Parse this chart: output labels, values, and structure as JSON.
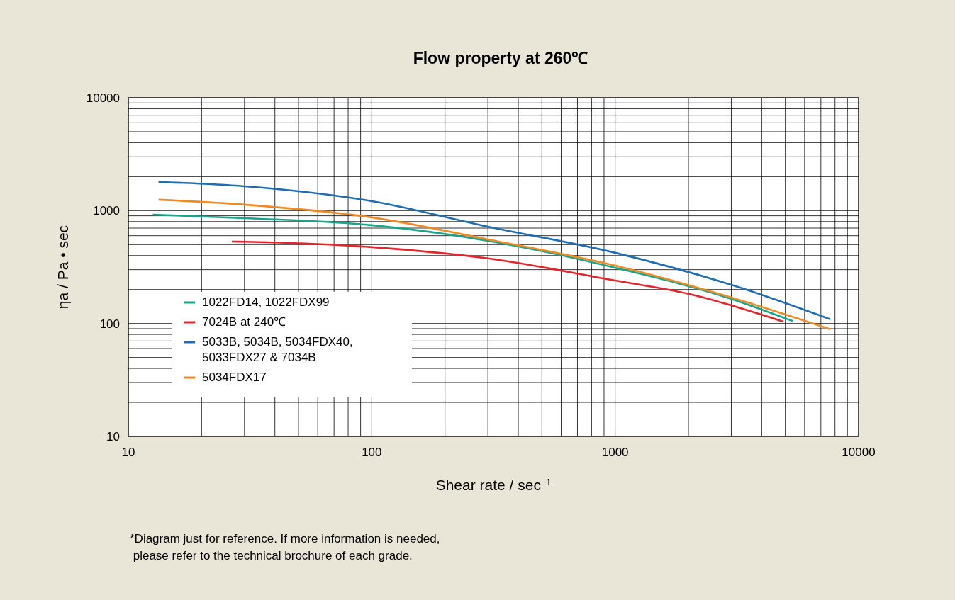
{
  "chart_data": {
    "type": "line",
    "title": "Flow property at 260℃",
    "xlabel": "Shear rate / sec$^{−1}$",
    "ylabel": "ηa / Pa • sec",
    "log": "xy",
    "grid": true,
    "legend": "bottom left",
    "marker": "none",
    "line_style": "solid",
    "xlim": [
      10,
      10000
    ],
    "ylim": [
      10,
      10000
    ],
    "xticks": [
      10,
      {
        "value": 20,
        "label": null
      },
      {
        "value": 30,
        "label": null
      },
      {
        "value": 40,
        "label": null
      },
      {
        "value": 50,
        "label": null
      },
      {
        "value": 60,
        "label": null
      },
      {
        "value": 70,
        "label": null
      },
      {
        "value": 80,
        "label": null
      },
      {
        "value": 90,
        "label": null
      },
      100,
      {
        "value": 200,
        "label": null
      },
      {
        "value": 300,
        "label": null
      },
      {
        "value": 400,
        "label": null
      },
      {
        "value": 500,
        "label": null
      },
      {
        "value": 600,
        "label": null
      },
      {
        "value": 700,
        "label": null
      },
      {
        "value": 800,
        "label": null
      },
      {
        "value": 900,
        "label": null
      },
      1000,
      {
        "value": 2000,
        "label": null
      },
      {
        "value": 3000,
        "label": null
      },
      {
        "value": 4000,
        "label": null
      },
      {
        "value": 5000,
        "label": null
      },
      {
        "value": 6000,
        "label": null
      },
      {
        "value": 7000,
        "label": null
      },
      {
        "value": 8000,
        "label": null
      },
      {
        "value": 9000,
        "label": null
      },
      10000
    ],
    "yticks": [
      10,
      {
        "value": 20,
        "label": null
      },
      {
        "value": 30,
        "label": null
      },
      {
        "value": 40,
        "label": null
      },
      {
        "value": 50,
        "label": null
      },
      {
        "value": 60,
        "label": null
      },
      {
        "value": 70,
        "label": null
      },
      {
        "value": 80,
        "label": null
      },
      {
        "value": 90,
        "label": null
      },
      100,
      {
        "value": 200,
        "label": null
      },
      {
        "value": 300,
        "label": null
      },
      {
        "value": 400,
        "label": null
      },
      {
        "value": 500,
        "label": null
      },
      {
        "value": 600,
        "label": null
      },
      {
        "value": 700,
        "label": null
      },
      {
        "value": 800,
        "label": null
      },
      {
        "value": 900,
        "label": null
      },
      1000,
      {
        "value": 2000,
        "label": null
      },
      {
        "value": 3000,
        "label": null
      },
      {
        "value": 4000,
        "label": null
      },
      {
        "value": 5000,
        "label": null
      },
      {
        "value": 6000,
        "label": null
      },
      {
        "value": 7000,
        "label": null
      },
      {
        "value": 8000,
        "label": null
      },
      {
        "value": 9000,
        "label": null
      },
      10000
    ],
    "series": [
      {
        "name": "1022FD14, 1022FDX99",
        "color": "#1aa58a",
        "x": [
          12.6,
          30,
          100,
          300,
          1000,
          3000,
          5360
        ],
        "values": [
          922,
          857,
          743,
          541,
          312,
          165,
          105
        ]
      },
      {
        "name": "7024B at 240℃",
        "color": "#e8232a",
        "x": [
          26.6,
          30,
          100,
          300,
          1000,
          2000,
          4890
        ],
        "values": [
          532,
          530,
          475,
          377,
          240,
          183,
          104
        ]
      },
      {
        "name": "5033B, 5034B, 5034FDX40,\n5033FDX27 & 7034B",
        "color": "#1f6db5",
        "x": [
          13.3,
          30,
          100,
          300,
          1000,
          3000,
          7650
        ],
        "values": [
          1795,
          1644,
          1214,
          721,
          423,
          220,
          109
        ]
      },
      {
        "name": "5034FDX17",
        "color": "#f08a24",
        "x": [
          13.3,
          30,
          100,
          300,
          1000,
          3000,
          7650
        ],
        "values": [
          1250,
          1130,
          871,
          556,
          326,
          170,
          89
        ]
      }
    ],
    "annotations": [
      "*Diagram just for reference. If more information is needed,\n please refer to the technical brochure of each grade."
    ]
  }
}
